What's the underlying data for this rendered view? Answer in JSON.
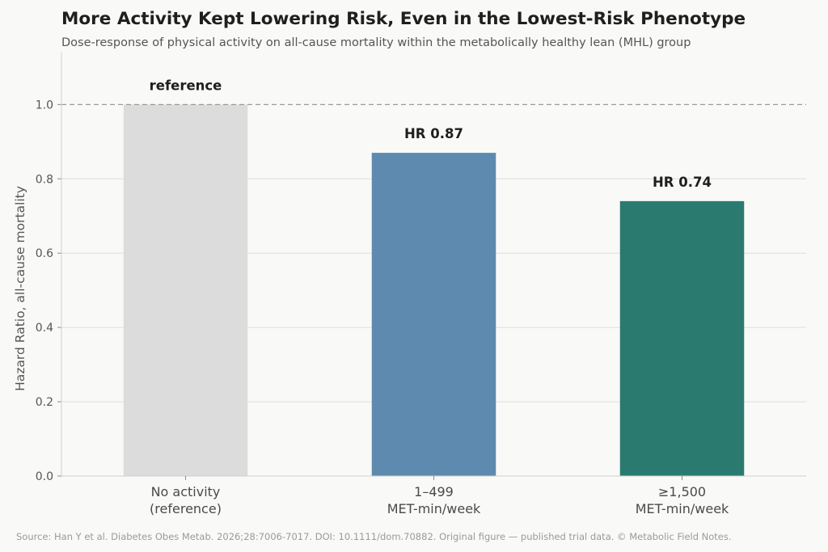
{
  "title": "More Activity Kept Lowering Risk, Even in the Lowest-Risk Phenotype",
  "subtitle": "Dose-response of physical activity on all-cause mortality within the metabolically healthy lean (MHL) group",
  "footer": "Source: Han Y et al. Diabetes Obes Metab. 2026;28:7006-7017. DOI: 10.1111/dom.70882. Original figure — published trial data. © Metabolic Field Notes.",
  "chart_data": {
    "type": "bar",
    "title": "More Activity Kept Lowering Risk, Even in the Lowest-Risk Phenotype",
    "subtitle": "Dose-response of physical activity on all-cause mortality within the metabolically healthy lean (MHL) group",
    "ylabel": "Hazard Ratio, all-cause mortality",
    "xlabel": "",
    "ylim": [
      0,
      1.14
    ],
    "yticks": [
      "0.0",
      "0.2",
      "0.4",
      "0.6",
      "0.8",
      "1.0"
    ],
    "ytick_values": [
      0,
      0.2,
      0.4,
      0.6,
      0.8,
      1.0
    ],
    "reference_line": 1.0,
    "grid": "horizontal",
    "categories": [
      [
        "No activity",
        "(reference)"
      ],
      [
        "1–499",
        "MET-min/week"
      ],
      [
        "≥1,500",
        "MET-min/week"
      ]
    ],
    "values": [
      1.0,
      0.87,
      0.74
    ],
    "data_labels": [
      "reference",
      "HR 0.87",
      "HR 0.74"
    ],
    "colors": [
      "#dcdcdc",
      "#5d8aae",
      "#2a7a70"
    ]
  }
}
